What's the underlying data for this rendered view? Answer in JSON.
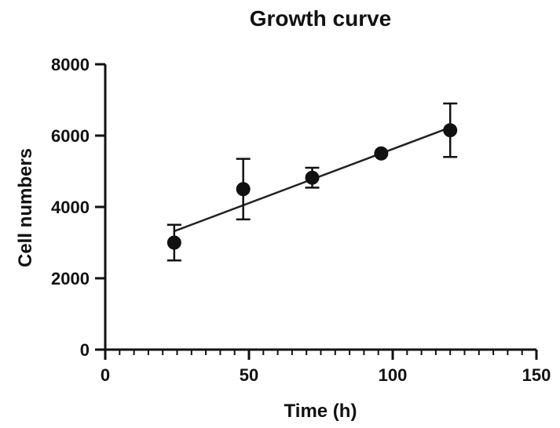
{
  "chart_data": {
    "type": "scatter",
    "title": "Growth curve",
    "xlabel": "Time (h)",
    "ylabel": "Cell numbers",
    "xlim": [
      0,
      150
    ],
    "ylim": [
      0,
      8000
    ],
    "x_ticks": [
      0,
      50,
      100,
      150
    ],
    "x_tick_labels": [
      "0",
      "50",
      "100",
      "150"
    ],
    "x_minor_step": 5,
    "y_ticks": [
      0,
      2000,
      4000,
      6000,
      8000
    ],
    "y_tick_labels": [
      "0",
      "2000",
      "4000",
      "6000",
      "8000"
    ],
    "series": [
      {
        "name": "Cell numbers",
        "x": [
          24,
          48,
          72,
          96,
          120
        ],
        "y": [
          3000,
          4500,
          4820,
          5500,
          6150
        ],
        "error": [
          500,
          850,
          280,
          0,
          750
        ]
      }
    ],
    "fit_line": {
      "x": [
        24,
        120
      ],
      "y": [
        3320,
        6230
      ]
    },
    "grid": false
  }
}
